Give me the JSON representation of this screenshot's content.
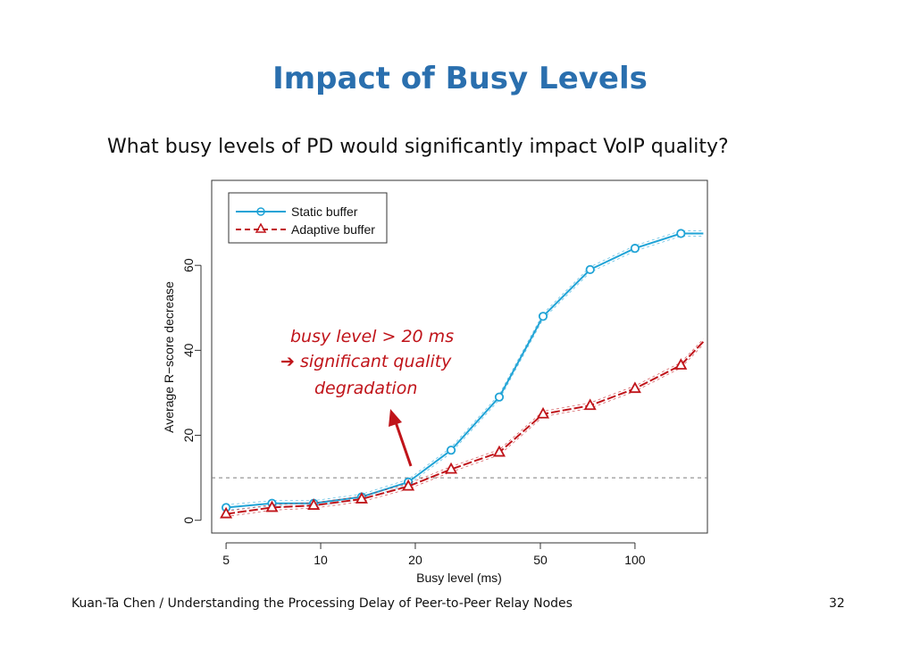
{
  "slide": {
    "title": "Impact of Busy Levels",
    "subtitle": "What busy levels of PD would significantly impact VoIP quality?",
    "footer": "Kuan-Ta Chen / Understanding the Processing Delay of Peer-to-Peer Relay Nodes",
    "page_number": "32"
  },
  "chart_data": {
    "type": "line",
    "title": "",
    "xlabel": "Busy level (ms)",
    "ylabel": "Average R−score decrease",
    "x_scale": "log",
    "xlim": [
      4.5,
      170
    ],
    "ylim": [
      -3,
      80
    ],
    "x_ticks": [
      5,
      10,
      20,
      50,
      100
    ],
    "y_ticks": [
      0,
      20,
      40,
      60
    ],
    "grid": false,
    "legend_position": "top-left",
    "reference_line": {
      "y": 10,
      "style": "dashed",
      "color": "#7f7f7f"
    },
    "series": [
      {
        "name": "Static buffer",
        "color": "#1fa3d6",
        "marker": "circle",
        "line_style": "solid",
        "x": [
          5,
          7,
          9.5,
          13.5,
          19,
          26,
          37,
          51,
          72,
          100,
          140,
          165
        ],
        "y": [
          3,
          4,
          4,
          5.5,
          9,
          16.5,
          29,
          48,
          59,
          64,
          67.5,
          67.5
        ]
      },
      {
        "name": "Adaptive buffer",
        "color": "#c0141a",
        "marker": "triangle",
        "line_style": "dashed",
        "x": [
          5,
          7,
          9.5,
          13.5,
          19,
          26,
          37,
          51,
          72,
          100,
          140,
          165
        ],
        "y": [
          1.5,
          3,
          3.5,
          5,
          8,
          12,
          16,
          25,
          27,
          31,
          36.5,
          42
        ]
      }
    ],
    "annotations": [
      {
        "line1": "busy level > 20 ms",
        "arrow_glyph": "➔",
        "line2": "significant quality",
        "line3": "degradation"
      }
    ]
  }
}
